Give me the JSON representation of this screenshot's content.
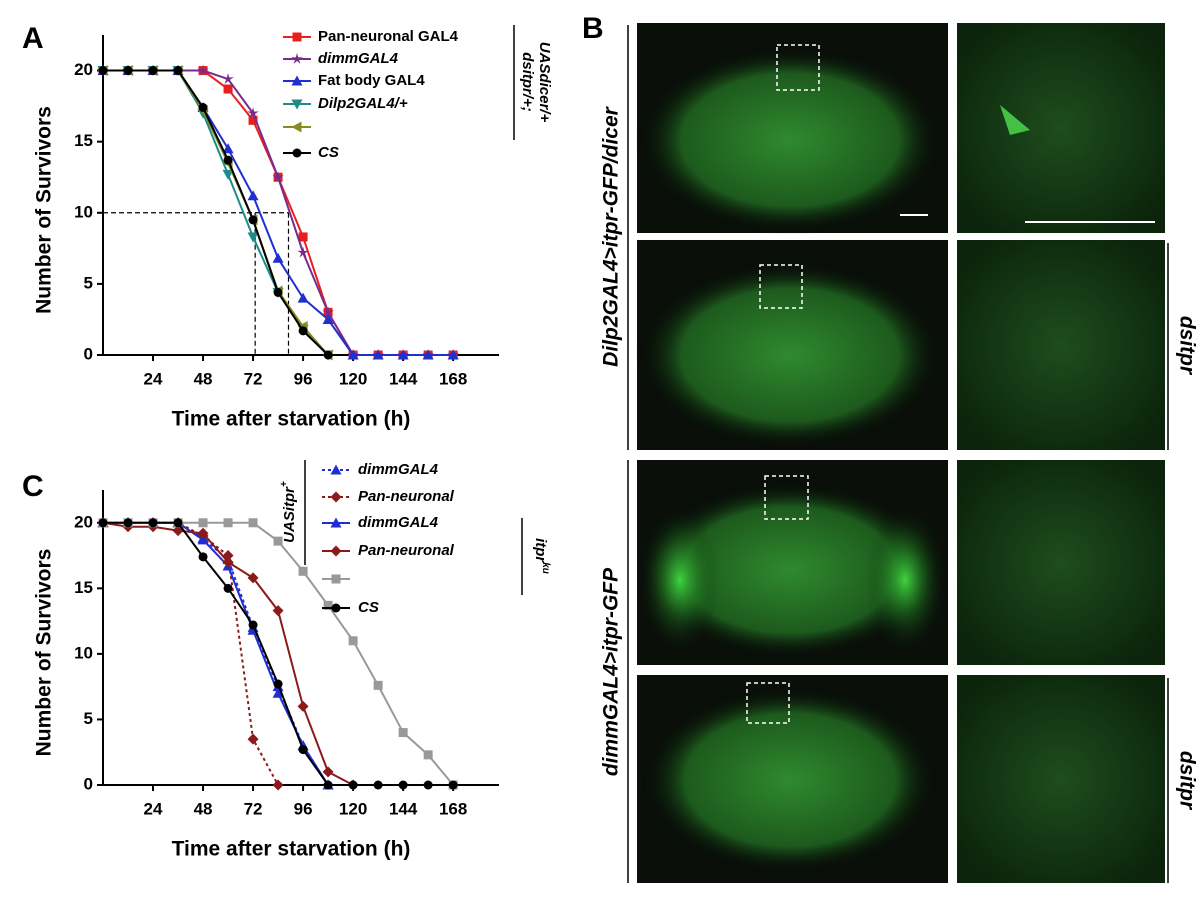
{
  "chart_data": [
    {
      "type": "line",
      "x_label": "Time after starvation (h)",
      "y_label": "Number of Survivors",
      "x": [
        0,
        12,
        24,
        36,
        48,
        60,
        72,
        84,
        96,
        108,
        120,
        132,
        144,
        156,
        168
      ],
      "xlim": [
        0,
        190
      ],
      "xticks": [
        24,
        48,
        72,
        96,
        120,
        144,
        168
      ],
      "ylim": [
        0,
        22.5
      ],
      "yticks": [
        0,
        5,
        10,
        15,
        20
      ],
      "ref_lines": {
        "y": 10,
        "x": [
          73,
          89
        ]
      },
      "bracket_label": [
        "dsitpr/+;",
        "UASdicer/+"
      ],
      "series": [
        {
          "name": "Pan-neuronal GAL4",
          "color": "#e8201c",
          "marker": "square",
          "italic": false,
          "values": [
            20,
            20,
            20,
            20,
            20,
            18.7,
            16.5,
            12.5,
            8.3,
            3,
            0,
            0,
            0,
            0,
            0
          ]
        },
        {
          "name": "dimmGAL4",
          "color": "#7a2a8c",
          "marker": "star",
          "italic": true,
          "values": [
            20,
            20,
            20,
            20,
            20,
            19.4,
            17,
            12.5,
            7.2,
            3,
            0,
            0,
            0,
            0,
            0
          ]
        },
        {
          "name": "Fat body GAL4",
          "color": "#1f2fd0",
          "marker": "triangle",
          "italic": false,
          "values": [
            20,
            20,
            20,
            20,
            17.4,
            14.5,
            11.2,
            6.8,
            4,
            2.5,
            0,
            0,
            0,
            0,
            0
          ]
        },
        {
          "name": "Dilp2GAL4/+",
          "color": "#1a8c8c",
          "marker": "tri-down",
          "italic": true,
          "values": [
            20,
            20,
            20,
            20,
            17,
            12.7,
            8.3,
            4.4,
            1.8,
            0,
            null,
            null,
            null,
            null,
            null
          ]
        },
        {
          "name": null,
          "color": "#8a8a20",
          "marker": "tri-left",
          "italic": false,
          "values": [
            20,
            20,
            20,
            20,
            17.2,
            13.5,
            9.5,
            4.5,
            2,
            0,
            null,
            null,
            null,
            null,
            null
          ]
        },
        {
          "name": "CS",
          "color": "#000000",
          "marker": "circle",
          "italic": true,
          "values": [
            20,
            20,
            20,
            20,
            17.4,
            13.7,
            9.5,
            4.4,
            1.7,
            0,
            null,
            null,
            null,
            null,
            null
          ]
        }
      ]
    },
    {
      "type": "line",
      "x_label": "Time after starvation (h)",
      "y_label": "Number of Survivors",
      "x": [
        0,
        12,
        24,
        36,
        48,
        60,
        72,
        84,
        96,
        108,
        120,
        132,
        144,
        156,
        168
      ],
      "xlim": [
        0,
        190
      ],
      "xticks": [
        24,
        48,
        72,
        96,
        120,
        144,
        168
      ],
      "ylim": [
        0,
        22.5
      ],
      "yticks": [
        0,
        5,
        10,
        15,
        20
      ],
      "brackets": [
        {
          "text": "UASitpr",
          "sup": "+"
        },
        {
          "text": "itpr",
          "sup": "ku"
        }
      ],
      "series": [
        {
          "name": "dimmGAL4",
          "color": "#1f2fd0",
          "marker": "triangle",
          "italic": true,
          "dash": true,
          "values": [
            20,
            20,
            20,
            20,
            18.8,
            17.2,
            12,
            7.5,
            3,
            0,
            null,
            null,
            null,
            null,
            null
          ]
        },
        {
          "name": "Pan-neuronal",
          "color": "#8b1a1a",
          "marker": "diamond",
          "italic": true,
          "dash": true,
          "values": [
            20,
            20,
            20,
            20,
            19,
            17.5,
            3.5,
            0,
            null,
            null,
            null,
            null,
            null,
            null,
            null
          ]
        },
        {
          "name": "dimmGAL4",
          "color": "#1f2fd0",
          "marker": "triangle",
          "italic": true,
          "dash": false,
          "values": [
            20,
            20,
            20,
            20,
            18.7,
            16.7,
            11.8,
            7,
            3,
            0,
            null,
            null,
            null,
            null,
            null
          ]
        },
        {
          "name": "Pan-neuronal",
          "color": "#8b1a1a",
          "marker": "diamond",
          "italic": true,
          "dash": false,
          "values": [
            20,
            19.7,
            19.7,
            19.4,
            19.2,
            17,
            15.8,
            13.3,
            6,
            1,
            0,
            null,
            null,
            null,
            null
          ]
        },
        {
          "name": null,
          "color": "#999999",
          "marker": "square",
          "italic": false,
          "dash": false,
          "values": [
            20,
            20,
            20,
            20,
            20,
            20,
            20,
            18.6,
            16.3,
            13.7,
            11,
            7.6,
            4,
            2.3,
            0
          ]
        },
        {
          "name": "CS",
          "color": "#000000",
          "marker": "circle",
          "italic": true,
          "dash": false,
          "values": [
            20,
            20,
            20,
            20,
            17.4,
            15,
            12.2,
            7.7,
            2.7,
            0,
            0,
            0,
            0,
            0,
            0
          ]
        }
      ]
    }
  ],
  "panel_labels": [
    "A",
    "B",
    "C"
  ],
  "panel_b": {
    "row_labels": [
      "Dilp2GAL4>itpr-GFP/dicer",
      "dimmGAL4>itpr-GFP"
    ],
    "side_labels": [
      "dsitpr",
      "dsitpr"
    ]
  }
}
